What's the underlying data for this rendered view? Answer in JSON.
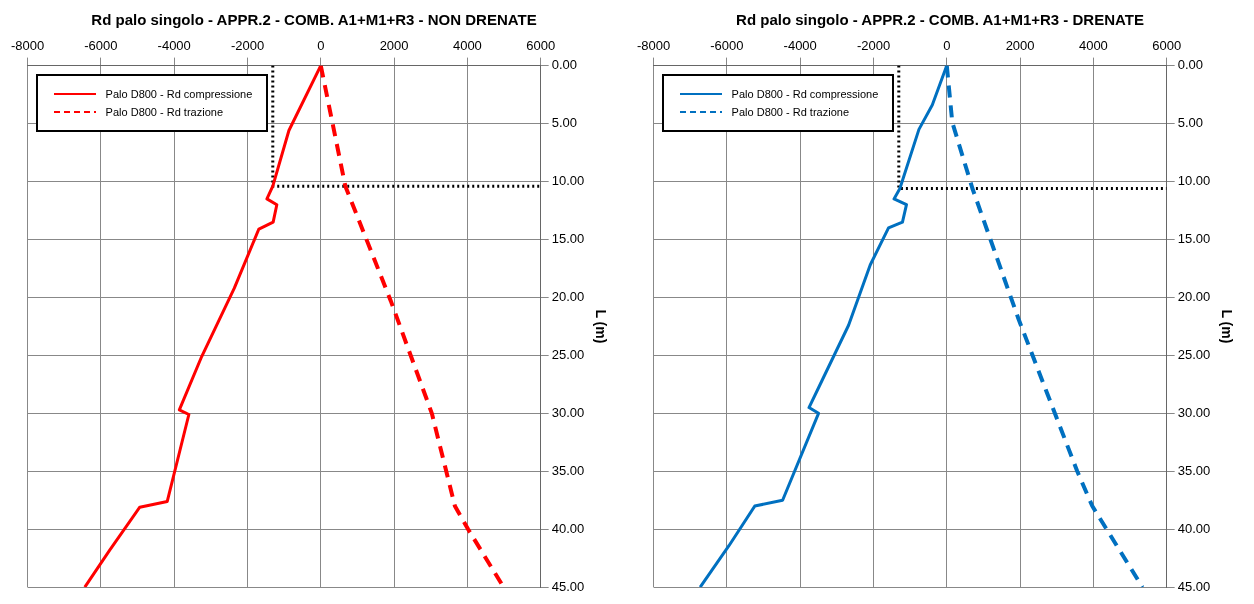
{
  "chart_data": [
    {
      "type": "line",
      "title": "Rd palo singolo - APPR.2 - COMB. A1+M1+R3 - NON DRENATE",
      "ylabel": "L (m)",
      "xlim": [
        -8000,
        6000
      ],
      "xticks": [
        -8000,
        -6000,
        -4000,
        -2000,
        0,
        2000,
        4000,
        6000
      ],
      "ylim": [
        45,
        0
      ],
      "yticks": [
        {
          "value": 0,
          "label": "0.00"
        },
        {
          "value": 5,
          "label": "5.00"
        },
        {
          "value": 10,
          "label": "10.00"
        },
        {
          "value": 15,
          "label": "15.00"
        },
        {
          "value": 20,
          "label": "20.00"
        },
        {
          "value": 25,
          "label": "25.00"
        },
        {
          "value": 30,
          "label": "30.00"
        },
        {
          "value": 35,
          "label": "35.00"
        },
        {
          "value": 40,
          "label": "40.00"
        },
        {
          "value": 45,
          "label": "45.00"
        }
      ],
      "grid": true,
      "legend": "top left",
      "series": [
        {
          "name": "Palo D800 - Rd compressione",
          "color": "#ff0000",
          "line_style": "solid",
          "x": [
            0,
            -870,
            -1310,
            -1470,
            -1200,
            -1300,
            -1690,
            -2360,
            -3250,
            -3860,
            -3600,
            -4190,
            -4940,
            -5760,
            -6440
          ],
          "values": [
            0,
            5.6,
            10.4,
            11.5,
            12,
            13.5,
            14.1,
            19.2,
            25.1,
            29.7,
            30.1,
            37.6,
            38.1,
            41.8,
            45
          ]
        },
        {
          "name": "Palo D800 - Rd trazione",
          "color": "#ff0000",
          "line_style": "dashed",
          "x": [
            0,
            670,
            1910,
            3030,
            3660,
            4020,
            4950
          ],
          "values": [
            0,
            10.4,
            20.3,
            30,
            38,
            40,
            44.8
          ]
        },
        {
          "color": "#000000",
          "line_style": "dotted",
          "x": [
            -1310,
            -1310,
            6000
          ],
          "values": [
            0,
            10.4,
            10.4
          ]
        }
      ]
    },
    {
      "type": "line",
      "title": "Rd palo singolo - APPR.2 - COMB. A1+M1+R3 - DRENATE",
      "ylabel": "L (m)",
      "xlim": [
        -8000,
        6000
      ],
      "xticks": [
        -8000,
        -6000,
        -4000,
        -2000,
        0,
        2000,
        4000,
        6000
      ],
      "ylim": [
        45,
        0
      ],
      "yticks": [
        {
          "value": 0,
          "label": "0.00"
        },
        {
          "value": 5,
          "label": "5.00"
        },
        {
          "value": 10,
          "label": "10.00"
        },
        {
          "value": 15,
          "label": "15.00"
        },
        {
          "value": 20,
          "label": "20.00"
        },
        {
          "value": 25,
          "label": "25.00"
        },
        {
          "value": 30,
          "label": "30.00"
        },
        {
          "value": 35,
          "label": "35.00"
        },
        {
          "value": 40,
          "label": "40.00"
        },
        {
          "value": 45,
          "label": "45.00"
        }
      ],
      "grid": true,
      "legend": "top left",
      "series": [
        {
          "name": "Palo D800 - Rd compressione",
          "color": "#0070c0",
          "line_style": "solid",
          "x": [
            0,
            -396,
            -760,
            -1280,
            -1440,
            -1100,
            -1210,
            -1590,
            -2090,
            -2680,
            -3470,
            -3760,
            -3500,
            -4480,
            -5240,
            -5940,
            -6730
          ],
          "values": [
            0,
            3.4,
            5.5,
            10.6,
            11.5,
            12,
            13.5,
            14,
            17.2,
            22.4,
            27.6,
            29.5,
            30,
            37.5,
            38,
            41.4,
            45
          ]
        },
        {
          "name": "Palo D800 - Rd trazione",
          "color": "#0070c0",
          "line_style": "dashed",
          "x": [
            0,
            150,
            700,
            1950,
            2730,
            3560,
            3970,
            5340
          ],
          "values": [
            0,
            4.9,
            10.6,
            21.8,
            28.2,
            35,
            38,
            45
          ]
        },
        {
          "color": "#000000",
          "line_style": "dotted",
          "x": [
            -1310,
            -1310,
            6000
          ],
          "values": [
            0,
            10.6,
            10.6
          ]
        }
      ]
    }
  ]
}
